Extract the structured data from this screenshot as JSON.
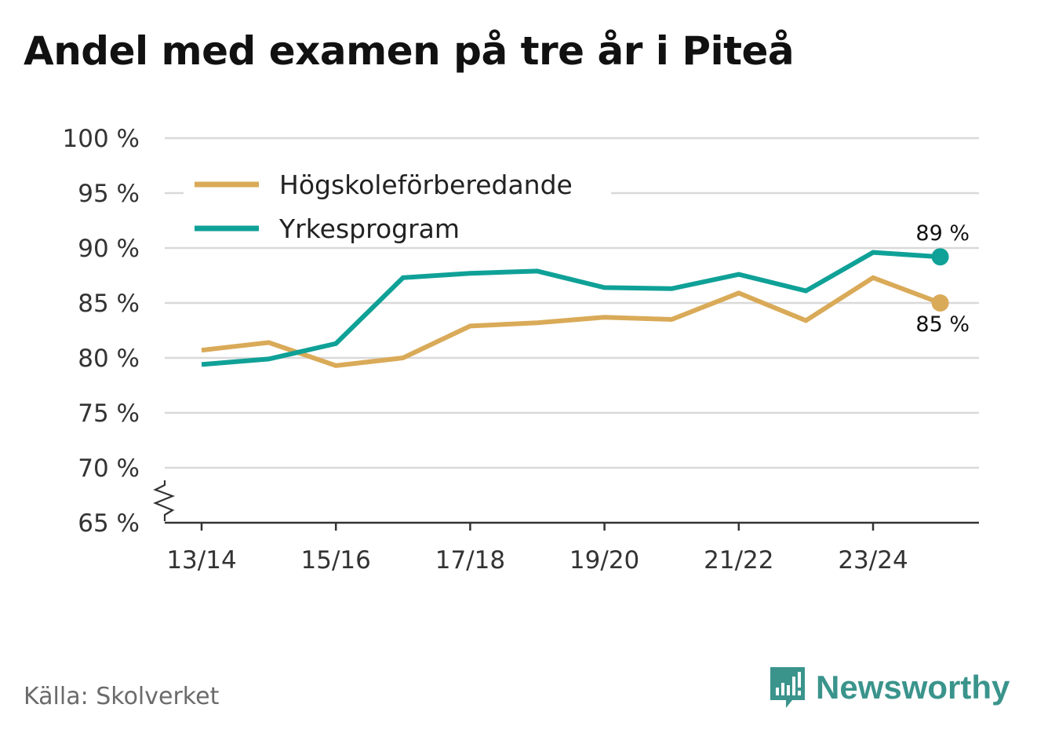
{
  "title": "Andel med examen på tre år i Piteå",
  "source": "Källa: Skolverket",
  "brand": "Newsworthy",
  "colors": {
    "hogskole": "#d9aa58",
    "yrkes": "#0fa197",
    "brand": "#3a948c"
  },
  "chart_data": {
    "type": "line",
    "title": "Andel med examen på tre år i Piteå",
    "xlabel": "",
    "ylabel": "",
    "ylim": [
      65,
      100
    ],
    "yticks": [
      65,
      70,
      75,
      80,
      85,
      90,
      95,
      100
    ],
    "ytick_labels": [
      "65 %",
      "70 %",
      "75 %",
      "80 %",
      "85 %",
      "90 %",
      "95 %",
      "100 %"
    ],
    "y_axis_break": true,
    "categories": [
      "13/14",
      "14/15",
      "15/16",
      "16/17",
      "17/18",
      "18/19",
      "19/20",
      "20/21",
      "21/22",
      "22/23",
      "23/24",
      "24/25"
    ],
    "x_tick_labels": [
      "13/14",
      "",
      "15/16",
      "",
      "17/18",
      "",
      "19/20",
      "",
      "21/22",
      "",
      "23/24",
      ""
    ],
    "legend_position": "top-left",
    "series": [
      {
        "name": "Högskoleförberedande",
        "color_key": "hogskole",
        "values": [
          80.7,
          81.4,
          79.3,
          80.0,
          82.9,
          83.2,
          83.7,
          83.5,
          85.9,
          83.4,
          87.3,
          85.0
        ],
        "end_label": "85 %"
      },
      {
        "name": "Yrkesprogram",
        "color_key": "yrkes",
        "values": [
          79.4,
          79.9,
          81.3,
          87.3,
          87.7,
          87.9,
          86.4,
          86.3,
          87.6,
          86.1,
          89.6,
          89.2
        ],
        "end_label": "89 %"
      }
    ]
  }
}
